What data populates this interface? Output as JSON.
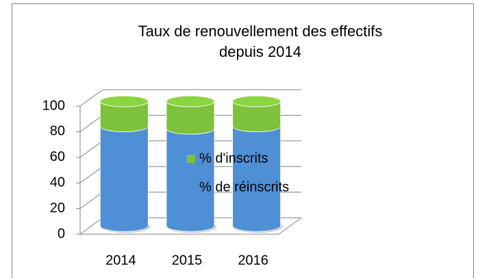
{
  "chart_data": {
    "type": "bar3d_stacked",
    "title": [
      "Taux de renouvellement des effectifs",
      "depuis 2014"
    ],
    "categories": [
      "2014",
      "2015",
      "2016"
    ],
    "series": [
      {
        "name": "% de réinscrits",
        "color": "#4f8fd6",
        "values": [
          80,
          78,
          80
        ]
      },
      {
        "name": "% d'inscrits",
        "color": "#7dc23a",
        "values": [
          20,
          22,
          20
        ]
      }
    ],
    "ylim": [
      0,
      100
    ],
    "yticks": [
      0,
      20,
      40,
      60,
      80,
      100
    ],
    "grid": true,
    "legend": "right"
  }
}
